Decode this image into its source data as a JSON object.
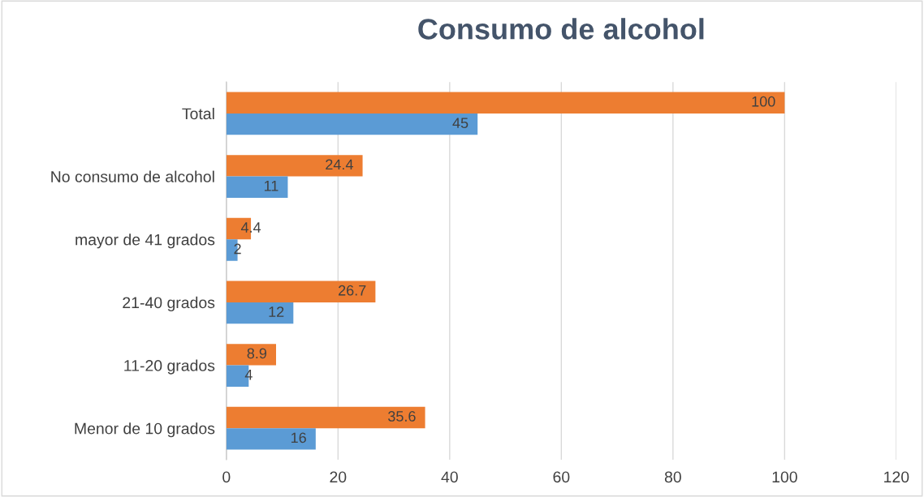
{
  "chart_data": {
    "type": "bar",
    "orientation": "horizontal",
    "title": "Consumo de alcohol",
    "categories": [
      "Total",
      "No consumo de alcohol",
      "mayor de 41 grados",
      "21-40 grados",
      "11-20 grados",
      "Menor de 10 grados"
    ],
    "series": [
      {
        "color": "#ed7d31",
        "values": [
          100,
          24.4,
          4.4,
          26.7,
          8.9,
          35.6
        ]
      },
      {
        "color": "#5b9bd5",
        "values": [
          45,
          11,
          2,
          12,
          4,
          16
        ]
      }
    ],
    "xlim": [
      0,
      120
    ],
    "xticks": [
      0,
      20,
      40,
      60,
      80,
      100,
      120
    ],
    "grid": "x",
    "data_labels": true
  }
}
